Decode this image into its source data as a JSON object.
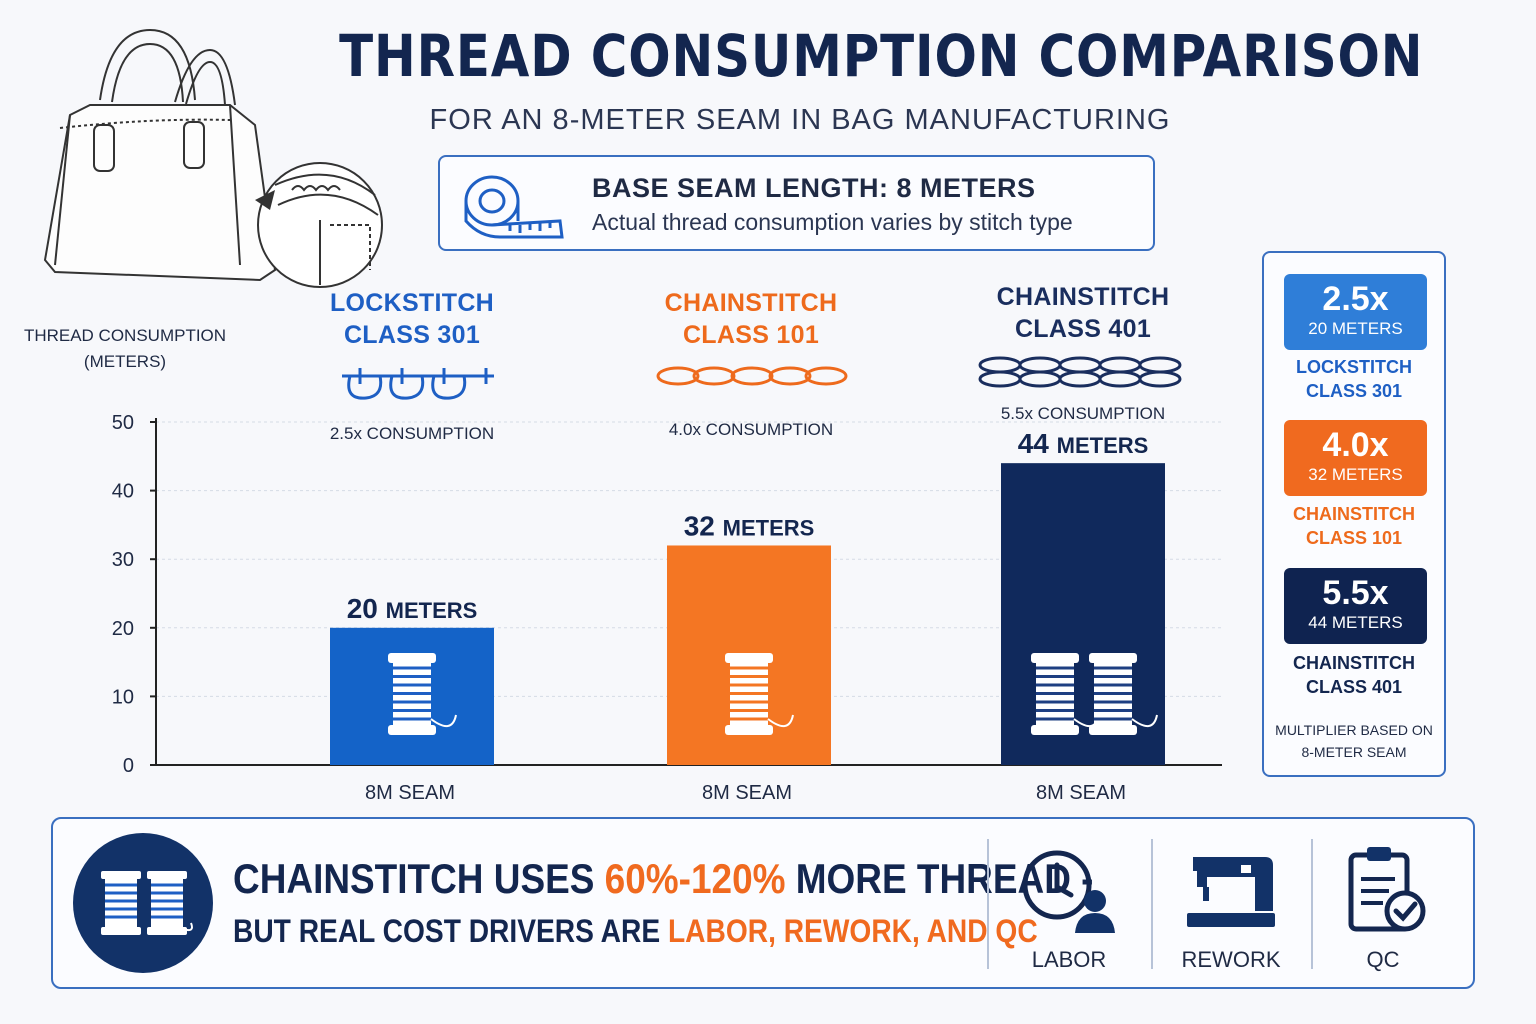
{
  "title": "THREAD CONSUMPTION COMPARISON",
  "subtitle": "FOR AN 8-METER SEAM IN BAG MANUFACTURING",
  "base_box": {
    "title": "BASE SEAM LENGTH: 8 METERS",
    "subtitle": "Actual thread consumption varies by stitch type"
  },
  "colors": {
    "lockstitch": "#1463c8",
    "chainstitch101": "#f47623",
    "chainstitch401": "#10295c",
    "accent": "#f06a1f"
  },
  "stitches": [
    {
      "line1": "LOCKSTITCH",
      "line2": "CLASS 301",
      "consumption": "2.5x CONSUMPTION",
      "bar_label_num": "20",
      "bar_label_unit": "METERS",
      "x_label": "8M SEAM",
      "color": "#1463c8",
      "title_color": "#1e5fc4"
    },
    {
      "line1": "CHAINSTITCH",
      "line2": "CLASS 101",
      "consumption": "4.0x CONSUMPTION",
      "bar_label_num": "32",
      "bar_label_unit": "METERS",
      "x_label": "8M SEAM",
      "color": "#f47623",
      "title_color": "#ee6a1c"
    },
    {
      "line1": "CHAINSTITCH",
      "line2": "CLASS 401",
      "consumption": "5.5x CONSUMPTION",
      "bar_label_num": "44",
      "bar_label_unit": "METERS",
      "x_label": "8M SEAM",
      "color": "#10295c",
      "title_color": "#1a2e5e"
    }
  ],
  "chart_data": {
    "type": "bar",
    "categories": [
      "LOCKSTITCH CLASS 301",
      "CHAINSTITCH CLASS 101",
      "CHAINSTITCH CLASS 401"
    ],
    "values": [
      20,
      32,
      44
    ],
    "ylabel": "THREAD CONSUMPTION (METERS)",
    "ylabel_line1": "THREAD CONSUMPTION",
    "ylabel_line2": "(METERS)",
    "xlabel": "",
    "x_tick_labels": [
      "8M SEAM",
      "8M SEAM",
      "8M SEAM"
    ],
    "ylim": [
      0,
      50
    ],
    "yticks": [
      0,
      10,
      20,
      30,
      40,
      50
    ],
    "grid": true,
    "multipliers": [
      "2.5x",
      "4.0x",
      "5.5x"
    ]
  },
  "side_panel": {
    "cards": [
      {
        "value": "2.5x",
        "meters": "20 METERS",
        "line1": "LOCKSTITCH",
        "line2": "CLASS 301",
        "bg": "#2f7ed8",
        "name_color": "#1e5fc4"
      },
      {
        "value": "4.0x",
        "meters": "32 METERS",
        "line1": "CHAINSTITCH",
        "line2": "CLASS 101",
        "bg": "#f06a1f",
        "name_color": "#ee6a1c"
      },
      {
        "value": "5.5x",
        "meters": "44 METERS",
        "line1": "CHAINSTITCH",
        "line2": "CLASS 401",
        "bg": "#0f2350",
        "name_color": "#13264f"
      }
    ],
    "note_line1": "MULTIPLIER BASED ON",
    "note_line2": "8-METER SEAM"
  },
  "bottom": {
    "line1_a": "CHAINSTITCH USES ",
    "line1_hl": "60%-120%",
    "line1_b": " MORE THREAD -",
    "line2_a": "BUT REAL COST DRIVERS ARE ",
    "line2_hl": "LABOR, REWORK, AND QC",
    "icons": [
      {
        "label": "LABOR",
        "icon": "clock-person-icon"
      },
      {
        "label": "REWORK",
        "icon": "sewing-machine-icon"
      },
      {
        "label": "QC",
        "icon": "clipboard-check-icon"
      }
    ]
  }
}
